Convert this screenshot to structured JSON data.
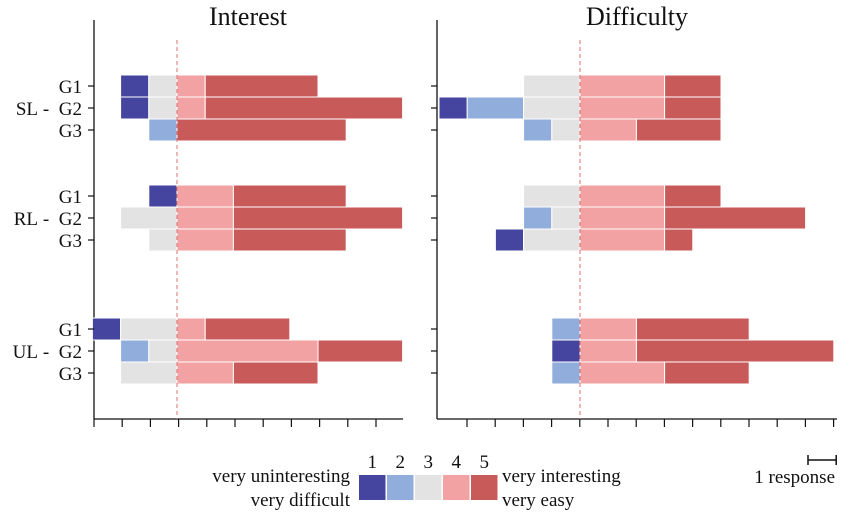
{
  "chart_data": {
    "type": "bar",
    "subtype": "diverging-stacked",
    "unit": "responses",
    "panels": [
      {
        "title": "Interest",
        "groups": [
          {
            "name": "SL",
            "rows": [
              {
                "label": "G1",
                "counts": [
                  1,
                  0,
                  1,
                  1,
                  4
                ]
              },
              {
                "label": "G2",
                "counts": [
                  1,
                  0,
                  1,
                  1,
                  7
                ]
              },
              {
                "label": "G3",
                "counts": [
                  0,
                  1,
                  0,
                  0,
                  6
                ]
              }
            ]
          },
          {
            "name": "RL",
            "rows": [
              {
                "label": "G1",
                "counts": [
                  1,
                  0,
                  0,
                  2,
                  4
                ]
              },
              {
                "label": "G2",
                "counts": [
                  0,
                  0,
                  2,
                  2,
                  6
                ]
              },
              {
                "label": "G3",
                "counts": [
                  0,
                  0,
                  1,
                  2,
                  4
                ]
              }
            ]
          },
          {
            "name": "UL",
            "rows": [
              {
                "label": "G1",
                "counts": [
                  1,
                  0,
                  2,
                  1,
                  3
                ]
              },
              {
                "label": "G2",
                "counts": [
                  0,
                  1,
                  1,
                  5,
                  3
                ]
              },
              {
                "label": "G3",
                "counts": [
                  0,
                  0,
                  2,
                  2,
                  3
                ]
              }
            ]
          }
        ]
      },
      {
        "title": "Difficulty",
        "groups": [
          {
            "name": "SL",
            "rows": [
              {
                "label": "G1",
                "counts": [
                  0,
                  0,
                  2,
                  3,
                  2
                ]
              },
              {
                "label": "G2",
                "counts": [
                  1,
                  2,
                  2,
                  3,
                  2
                ]
              },
              {
                "label": "G3",
                "counts": [
                  0,
                  1,
                  1,
                  2,
                  3
                ]
              }
            ]
          },
          {
            "name": "RL",
            "rows": [
              {
                "label": "G1",
                "counts": [
                  0,
                  0,
                  2,
                  3,
                  2
                ]
              },
              {
                "label": "G2",
                "counts": [
                  0,
                  1,
                  1,
                  3,
                  5
                ]
              },
              {
                "label": "G3",
                "counts": [
                  1,
                  0,
                  2,
                  3,
                  1
                ]
              }
            ]
          },
          {
            "name": "UL",
            "rows": [
              {
                "label": "G1",
                "counts": [
                  0,
                  1,
                  0,
                  2,
                  4
                ]
              },
              {
                "label": "G2",
                "counts": [
                  1,
                  0,
                  0,
                  2,
                  7
                ]
              },
              {
                "label": "G3",
                "counts": [
                  0,
                  1,
                  0,
                  3,
                  3
                ]
              }
            ]
          }
        ]
      }
    ],
    "legend": {
      "levels": [
        "1",
        "2",
        "3",
        "4",
        "5"
      ],
      "left_text": [
        "very uninteresting",
        "very difficult"
      ],
      "right_text": [
        "very interesting",
        "very easy"
      ],
      "colors": [
        "#45449f",
        "#91addb",
        "#e3e3e3",
        "#f2a2a2",
        "#c95a5a"
      ]
    },
    "scale_label": "1 response",
    "group_separator": "-",
    "center_line_color": "#e07070"
  }
}
